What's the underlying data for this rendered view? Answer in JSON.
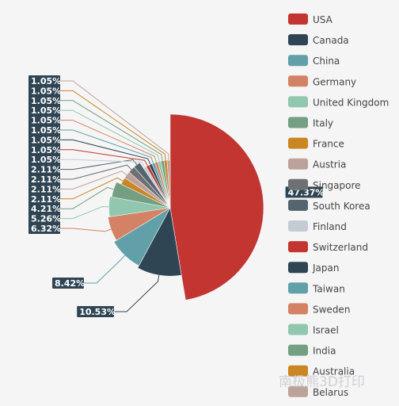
{
  "chart_data": {
    "type": "pie",
    "categories": [
      "USA",
      "Canada",
      "China",
      "Germany",
      "United Kingdom",
      "Italy",
      "France",
      "Austria",
      "Singapore",
      "South Korea",
      "Finland",
      "Switzerland",
      "Japan",
      "Taiwan",
      "Sweden",
      "Israel",
      "India",
      "Australia",
      "Belarus"
    ],
    "values": [
      47.37,
      10.53,
      8.42,
      6.32,
      5.26,
      4.21,
      2.11,
      2.11,
      2.11,
      2.11,
      1.05,
      1.05,
      1.05,
      1.05,
      1.05,
      1.05,
      1.05,
      1.05,
      1.05
    ],
    "data_labels": [
      "47.37%",
      "10.53%",
      "8.42%",
      "6.32%",
      "5.26%",
      "4.21%",
      "2.11%",
      "2.11%",
      "2.11%",
      "2.11%",
      "1.05%",
      "1.05%",
      "1.05%",
      "1.05%",
      "1.05%",
      "1.05%",
      "1.05%",
      "1.05%",
      "1.05%"
    ],
    "colors": [
      "#c23531",
      "#2f4554",
      "#61a0a8",
      "#d48265",
      "#91c7ae",
      "#749f83",
      "#ca8622",
      "#bda29a",
      "#6e7074",
      "#546570",
      "#c4ccd3",
      "#c23531",
      "#2f4554",
      "#61a0a8",
      "#d48265",
      "#91c7ae",
      "#749f83",
      "#ca8622",
      "#bda29a"
    ],
    "legend_position": "right",
    "label_box_color": "#2f4554"
  },
  "watermark": "南极熊3D打印"
}
